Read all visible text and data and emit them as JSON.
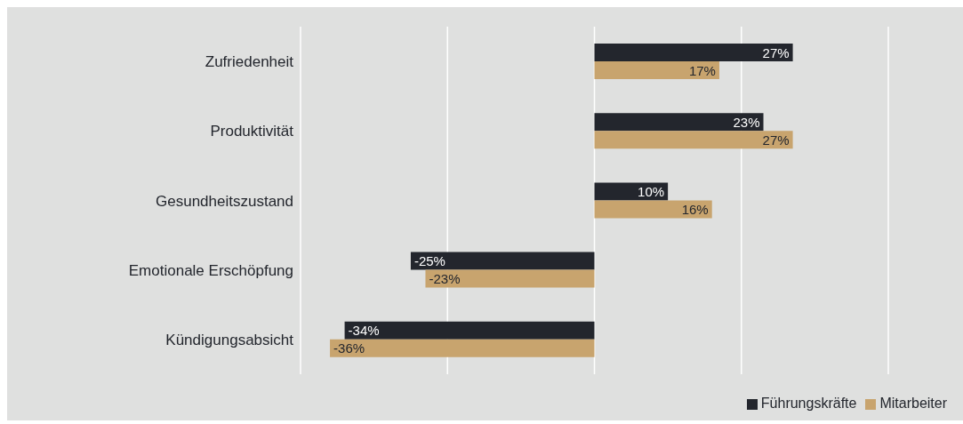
{
  "chart_data": {
    "type": "bar",
    "orientation": "horizontal",
    "categories": [
      "Zufriedenheit",
      "Produktivität",
      "Gesundheitszustand",
      "Emotionale Erschöpfung",
      "Kündigungsabsicht"
    ],
    "series": [
      {
        "name": "Führungskräfte",
        "color": "#23262d",
        "values": [
          27,
          23,
          10,
          -25,
          -34
        ],
        "value_labels": [
          "27%",
          "23%",
          "10%",
          "-25%",
          "-34%"
        ]
      },
      {
        "name": "Mitarbeiter",
        "color": "#c8a46e",
        "values": [
          17,
          27,
          16,
          -23,
          -36
        ],
        "value_labels": [
          "17%",
          "27%",
          "16%",
          "-23%",
          "-36%"
        ]
      }
    ],
    "tick_labels": "y",
    "grid": "x",
    "legend": "bottom right"
  }
}
